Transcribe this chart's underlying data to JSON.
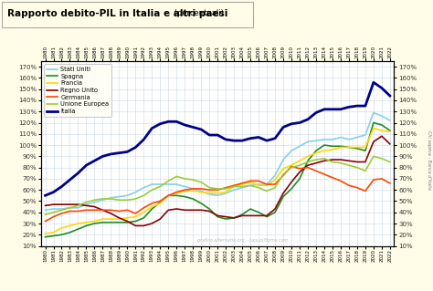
{
  "title": "Rapporto debito-PIL in Italia e altri paesi",
  "title_suffix": " (percentuali)",
  "background_color": "#FFFDE7",
  "plot_bg_color": "#FFFFFF",
  "grid_color": "#C8D8E8",
  "years": [
    1980,
    1981,
    1982,
    1983,
    1984,
    1985,
    1986,
    1987,
    1988,
    1989,
    1990,
    1991,
    1992,
    1993,
    1994,
    1995,
    1996,
    1997,
    1998,
    1999,
    2000,
    2001,
    2002,
    2003,
    2004,
    2005,
    2006,
    2007,
    2008,
    2009,
    2010,
    2011,
    2012,
    2013,
    2014,
    2015,
    2016,
    2017,
    2018,
    2019,
    2020,
    2021,
    2022
  ],
  "series": {
    "Stati Uniti": {
      "color": "#87CEEB",
      "linewidth": 1.2,
      "data": [
        42,
        43,
        43,
        44,
        44,
        47,
        49,
        51,
        53,
        54,
        55,
        58,
        62,
        65,
        65,
        65,
        65,
        63,
        61,
        59,
        56,
        55,
        57,
        60,
        62,
        64,
        65,
        65,
        73,
        87,
        95,
        99,
        103,
        104,
        105,
        105,
        107,
        105,
        107,
        109,
        129,
        126,
        122
      ]
    },
    "Spagna": {
      "color": "#228B22",
      "linewidth": 1.2,
      "data": [
        18,
        19,
        20,
        22,
        25,
        28,
        30,
        31,
        31,
        31,
        31,
        32,
        35,
        43,
        49,
        55,
        55,
        54,
        52,
        48,
        43,
        36,
        34,
        35,
        38,
        43,
        40,
        36,
        40,
        54,
        61,
        70,
        86,
        95,
        100,
        99,
        99,
        98,
        97,
        95,
        120,
        118,
        113
      ]
    },
    "Francia": {
      "color": "#FFD700",
      "linewidth": 1.2,
      "data": [
        21,
        22,
        26,
        28,
        30,
        31,
        32,
        34,
        34,
        34,
        35,
        36,
        40,
        45,
        48,
        55,
        57,
        59,
        59,
        58,
        57,
        57,
        58,
        63,
        65,
        67,
        64,
        64,
        69,
        79,
        82,
        86,
        90,
        93,
        95,
        96,
        98,
        98,
        98,
        98,
        115,
        113,
        112
      ]
    },
    "Regno Unito": {
      "color": "#8B0000",
      "linewidth": 1.2,
      "data": [
        46,
        47,
        47,
        47,
        47,
        46,
        45,
        42,
        39,
        35,
        32,
        28,
        28,
        30,
        34,
        42,
        43,
        42,
        42,
        42,
        41,
        37,
        36,
        35,
        37,
        37,
        37,
        37,
        43,
        57,
        67,
        76,
        82,
        84,
        86,
        87,
        87,
        86,
        85,
        85,
        103,
        108,
        101
      ]
    },
    "Germania": {
      "color": "#FF4500",
      "linewidth": 1.2,
      "data": [
        32,
        36,
        39,
        41,
        41,
        42,
        42,
        42,
        42,
        41,
        42,
        39,
        44,
        48,
        50,
        55,
        58,
        60,
        61,
        61,
        60,
        60,
        62,
        64,
        66,
        68,
        68,
        65,
        65,
        73,
        81,
        79,
        80,
        77,
        74,
        71,
        68,
        64,
        62,
        59,
        69,
        70,
        66
      ]
    },
    "Unione Europea": {
      "color": "#9ACD32",
      "linewidth": 1.2,
      "data": [
        38,
        40,
        42,
        44,
        46,
        49,
        51,
        52,
        52,
        51,
        51,
        52,
        55,
        60,
        63,
        68,
        72,
        70,
        69,
        67,
        62,
        61,
        61,
        63,
        63,
        64,
        62,
        59,
        62,
        74,
        80,
        82,
        85,
        87,
        88,
        85,
        84,
        82,
        80,
        77,
        90,
        88,
        85
      ]
    },
    "Italia": {
      "color": "#00008B",
      "linewidth": 2.0,
      "data": [
        55,
        58,
        63,
        69,
        75,
        82,
        86,
        90,
        92,
        93,
        94,
        98,
        105,
        115,
        119,
        121,
        121,
        118,
        116,
        114,
        109,
        109,
        105,
        104,
        104,
        106,
        107,
        104,
        106,
        116,
        119,
        120,
        123,
        129,
        132,
        132,
        132,
        134,
        135,
        135,
        156,
        151,
        144
      ]
    }
  },
  "ylim": [
    10,
    175
  ],
  "yticks": [
    10,
    20,
    30,
    40,
    50,
    60,
    70,
    80,
    90,
    100,
    110,
    120,
    130,
    140,
    150,
    160,
    170
  ],
  "watermark": "grafico.alternatia.org - luca.pil5pms.com",
  "right_label": "Chi sapeva - Banca d'Italia",
  "title_box_color": "#F5F5DC",
  "title_box_border": "#BBBBBB"
}
